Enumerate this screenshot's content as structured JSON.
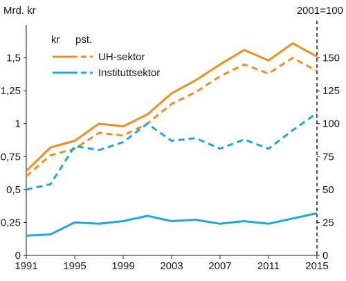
{
  "chart_data": {
    "type": "line",
    "left_axis_label": "Mrd. kr",
    "right_axis_label": "2001=100",
    "x_ticks": [
      "1991",
      "1995",
      "1999",
      "2003",
      "2007",
      "2011",
      "2015"
    ],
    "xlim": [
      1991,
      2015
    ],
    "left_ylim": [
      0,
      1.75
    ],
    "left_y_ticks": [
      "0",
      "0,25",
      "0,5",
      "0,75",
      "1",
      "1,25",
      "1,5"
    ],
    "left_y_tick_values": [
      0,
      0.25,
      0.5,
      0.75,
      1,
      1.25,
      1.5
    ],
    "right_ylim": [
      0,
      175
    ],
    "right_y_ticks": [
      "0",
      "25",
      "50",
      "75",
      "100",
      "125",
      "150"
    ],
    "right_y_tick_values": [
      0,
      25,
      50,
      75,
      100,
      125,
      150
    ],
    "reference_line_x": 2015,
    "legend_headers": {
      "solid": "kr",
      "dashed": "pst."
    },
    "legend_placement": "top-left",
    "series": [
      {
        "name": "UH-sektor",
        "color": "#f28c1f",
        "style": "solid",
        "axis": "left",
        "x": [
          1991,
          1993,
          1995,
          1997,
          1999,
          2001,
          2003,
          2005,
          2007,
          2009,
          2011,
          2013,
          2015
        ],
        "values": [
          0.64,
          0.82,
          0.87,
          1.0,
          0.98,
          1.07,
          1.23,
          1.33,
          1.45,
          1.56,
          1.48,
          1.61,
          1.51
        ]
      },
      {
        "name": "UH-sektor",
        "color": "#f28c1f",
        "style": "dashed",
        "axis": "right",
        "x": [
          1991,
          1993,
          1995,
          1997,
          1999,
          2001,
          2003,
          2005,
          2007,
          2009,
          2011,
          2013,
          2015
        ],
        "values": [
          60,
          76,
          81,
          93,
          91,
          100,
          115,
          124,
          136,
          145,
          138,
          150,
          140
        ]
      },
      {
        "name": "Instituttsektor",
        "color": "#1ea6dd",
        "style": "solid",
        "axis": "left",
        "x": [
          1991,
          1993,
          1995,
          1997,
          1999,
          2001,
          2003,
          2005,
          2007,
          2009,
          2011,
          2013,
          2015
        ],
        "values": [
          0.15,
          0.16,
          0.25,
          0.24,
          0.26,
          0.3,
          0.26,
          0.27,
          0.24,
          0.26,
          0.24,
          0.28,
          0.32
        ]
      },
      {
        "name": "Instituttsektor",
        "color": "#1ea6dd",
        "style": "dashed",
        "axis": "right",
        "x": [
          1991,
          1993,
          1995,
          1997,
          1999,
          2001,
          2003,
          2005,
          2007,
          2009,
          2011,
          2013,
          2015
        ],
        "values": [
          50,
          54,
          83,
          80,
          86,
          100,
          87,
          89,
          81,
          88,
          81,
          95,
          108
        ]
      }
    ]
  }
}
